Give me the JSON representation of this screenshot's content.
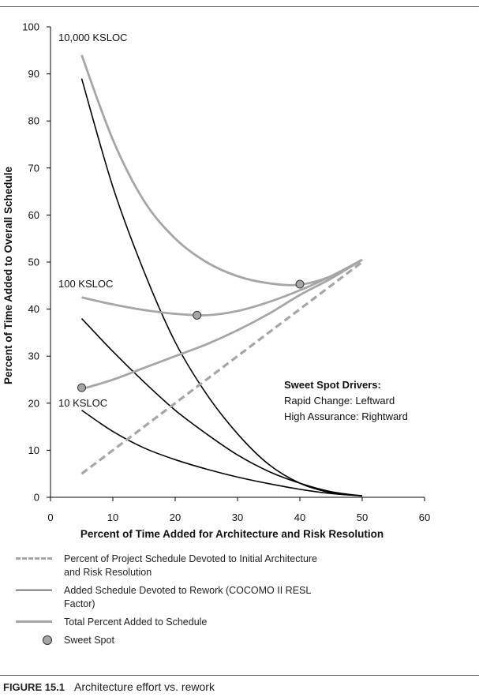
{
  "chart_data": {
    "type": "line",
    "xlabel": "Percent of Time Added for Architecture and Risk Resolution",
    "ylabel": "Percent of Time Added to Overall Schedule",
    "xlim": [
      0,
      60
    ],
    "ylim": [
      0,
      100
    ],
    "xticks": [
      0,
      10,
      20,
      30,
      40,
      50,
      60
    ],
    "yticks": [
      0,
      10,
      20,
      30,
      40,
      50,
      60,
      70,
      80,
      90,
      100
    ],
    "grid": false,
    "legend_position": "bottom",
    "series": [
      {
        "name": "Percent of Project Schedule Devoted to Initial Architecture and Risk Resolution",
        "style": "dashed-gray",
        "x": [
          5,
          50
        ],
        "y": [
          5,
          50
        ]
      },
      {
        "style": "solid-black",
        "group": "10,000 KSLOC",
        "x": [
          5,
          10,
          15,
          20,
          25,
          30,
          35,
          40,
          45,
          50
        ],
        "y": [
          89,
          66,
          48,
          33,
          22,
          13.5,
          7,
          3,
          1,
          0.3
        ]
      },
      {
        "style": "solid-black",
        "group": "100 KSLOC",
        "x": [
          5,
          10,
          15,
          20,
          25,
          30,
          35,
          40,
          45,
          50
        ],
        "y": [
          38,
          31,
          24.5,
          18.5,
          13.5,
          9,
          5.5,
          3,
          1.2,
          0.3
        ]
      },
      {
        "style": "solid-black",
        "group": "10 KSLOC",
        "x": [
          5,
          10,
          15,
          20,
          25,
          30,
          35,
          40,
          45,
          50
        ],
        "y": [
          18.5,
          14,
          10.5,
          8,
          6,
          4.3,
          2.9,
          1.7,
          0.8,
          0.3
        ]
      },
      {
        "style": "solid-gray",
        "group": "10,000 KSLOC",
        "x": [
          5,
          10,
          15,
          20,
          25,
          30,
          35,
          40,
          45,
          50
        ],
        "y": [
          94,
          76,
          63,
          55,
          50,
          47,
          45.5,
          45.2,
          47,
          50.5
        ]
      },
      {
        "style": "solid-gray",
        "group": "100 KSLOC",
        "x": [
          5,
          10,
          15,
          20,
          25,
          30,
          35,
          40,
          45,
          50
        ],
        "y": [
          42.5,
          41,
          39.8,
          39,
          38.7,
          39.6,
          41.5,
          44,
          47,
          50.5
        ]
      },
      {
        "style": "solid-gray",
        "group": "10 KSLOC",
        "x": [
          5,
          10,
          15,
          20,
          25,
          30,
          35,
          40,
          45,
          50
        ],
        "y": [
          23,
          25,
          27.5,
          30,
          32.5,
          35.5,
          39,
          43,
          46.5,
          50.5
        ]
      }
    ],
    "sweet_spots": [
      {
        "x": 5,
        "y": 23.3
      },
      {
        "x": 23.5,
        "y": 38.7
      },
      {
        "x": 40,
        "y": 45.3
      }
    ],
    "annotations": {
      "label_10000": {
        "text": "10,000 KSLOC",
        "x": 1.5,
        "y": 97
      },
      "label_100": {
        "text": "100 KSLOC",
        "x": 1.5,
        "y": 44
      },
      "label_10": {
        "text": "10 KSLOC",
        "x": 1.5,
        "y": 19.3
      },
      "drivers_title": "Sweet Spot Drivers:",
      "driver_1": "Rapid Change: Leftward",
      "driver_2": "High Assurance: Rightward"
    }
  },
  "legend": {
    "dashed_line": "Percent of Project Schedule Devoted to Initial Architecture and Risk Resolution",
    "black_line": "Added Schedule Devoted to Rework (COCOMO II RESL Factor)",
    "gray_line": "Total Percent Added to Schedule",
    "sweet_spot": "Sweet Spot"
  },
  "caption": {
    "label": "FIGURE 15.1",
    "text": "Architecture effort vs. rework"
  },
  "colors": {
    "gray_line": "#a6a6a6",
    "black_line": "#000000",
    "dot_fill": "#a6a6a6"
  }
}
